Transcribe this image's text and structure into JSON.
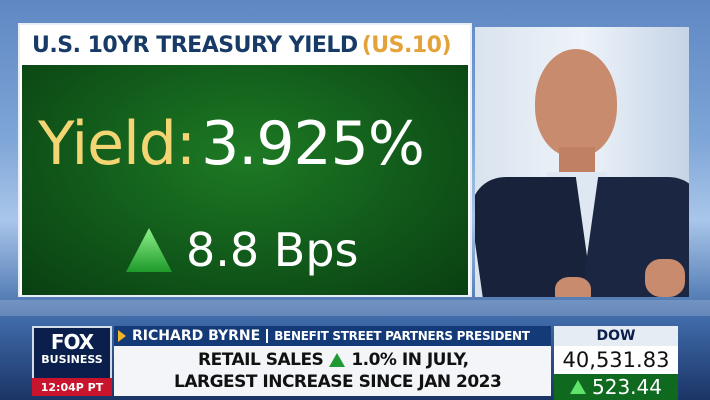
{
  "graphic": {
    "title": "U.S. 10YR TREASURY YIELD",
    "ticker": "(US.10)",
    "yield_label": "Yield:",
    "yield_value": "3.925%",
    "change_value": "8.8 Bps",
    "change_direction": "up",
    "accent_green": "#11591a",
    "label_gold": "#f3d574"
  },
  "lower_third": {
    "network_logo_line1": "FOX",
    "network_logo_line2": "BUSINESS",
    "clock": "12:04P PT",
    "guest_name": "RICHARD BYRNE",
    "guest_title": "BENEFIT STREET PARTNERS PRESIDENT",
    "headline_line1_pre": "RETAIL SALES",
    "headline_line1_post": "1.0% IN JULY,",
    "headline_line2": "LARGEST INCREASE SINCE JAN 2023"
  },
  "market_ticker": {
    "index": "DOW",
    "value": "40,531.83",
    "change": "523.44",
    "direction": "up"
  }
}
